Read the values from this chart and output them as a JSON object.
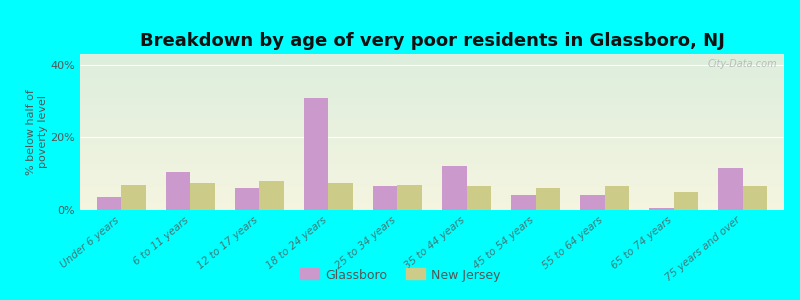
{
  "title": "Breakdown by age of very poor residents in Glassboro, NJ",
  "ylabel": "% below half of\npoverty level",
  "categories": [
    "Under 6 years",
    "6 to 11 years",
    "12 to 17 years",
    "18 to 24 years",
    "25 to 34 years",
    "35 to 44 years",
    "45 to 54 years",
    "55 to 64 years",
    "65 to 74 years",
    "75 years and over"
  ],
  "glassboro": [
    3.5,
    10.5,
    6.0,
    31.0,
    6.5,
    12.0,
    4.0,
    4.0,
    0.5,
    11.5
  ],
  "new_jersey": [
    7.0,
    7.5,
    8.0,
    7.5,
    7.0,
    6.5,
    6.0,
    6.5,
    5.0,
    6.5
  ],
  "glassboro_color": "#cc99cc",
  "nj_color": "#cccc88",
  "background_top": "#ddeedd",
  "background_bottom": "#f5f5e0",
  "bg_outer": "#00ffff",
  "ylim": [
    0,
    43
  ],
  "yticks": [
    0,
    20,
    40
  ],
  "ytick_labels": [
    "0%",
    "20%",
    "40%"
  ],
  "bar_width": 0.35,
  "title_fontsize": 13,
  "axis_label_fontsize": 8,
  "tick_label_fontsize": 7.5,
  "watermark": "City-Data.com"
}
